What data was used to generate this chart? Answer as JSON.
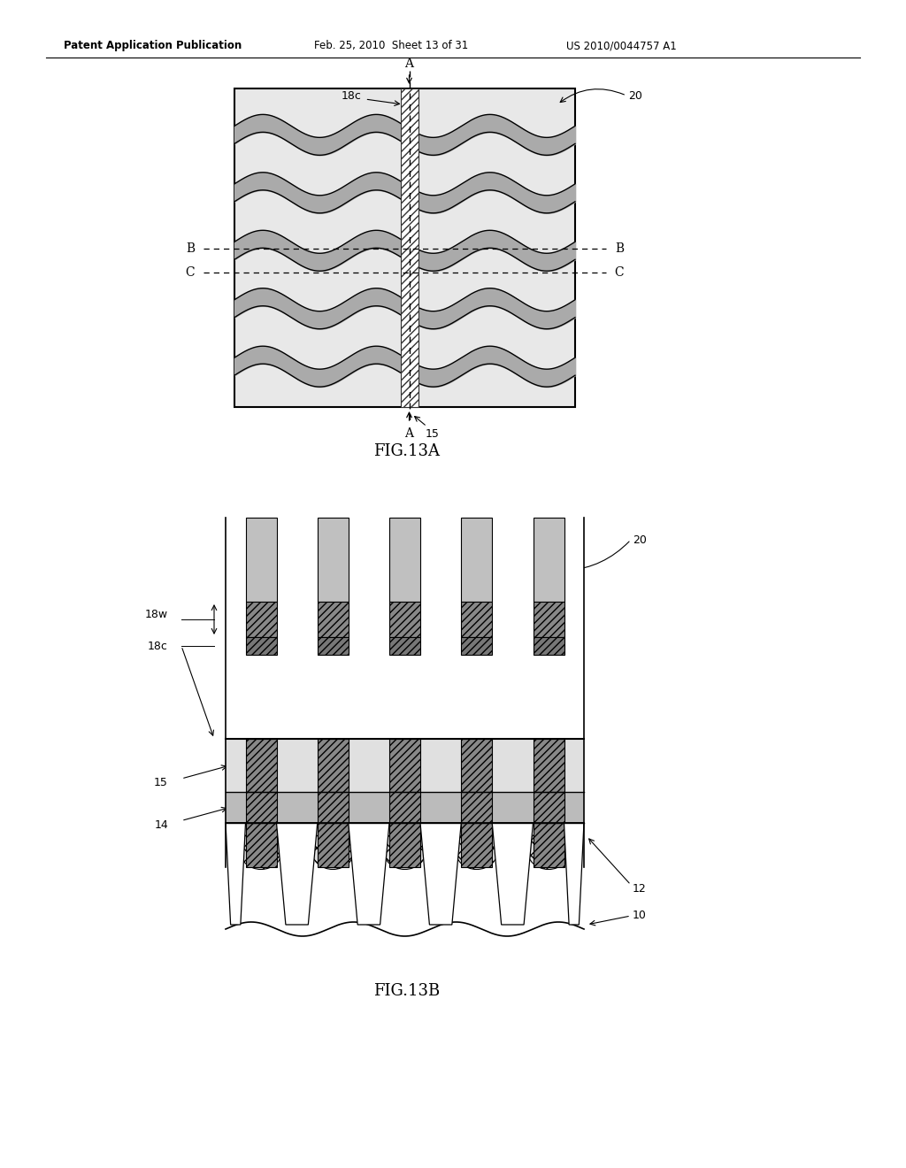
{
  "header_left": "Patent Application Publication",
  "header_mid": "Feb. 25, 2010  Sheet 13 of 31",
  "header_right": "US 2010/0044757 A1",
  "fig13a_label": "FIG.13A",
  "fig13b_label": "FIG.13B",
  "background": "#ffffff"
}
